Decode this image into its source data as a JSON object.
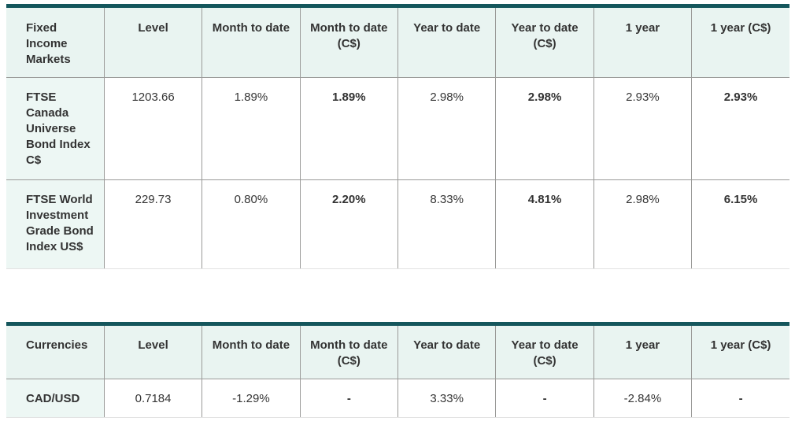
{
  "colors": {
    "accent_teal": "#14565c",
    "header_background": "#e9f4f1",
    "row_label_background": "#edf7f4",
    "grid_line": "#9a9a98",
    "table_bottom_line": "#e2e2e2",
    "text": "#363636"
  },
  "chart_data": [
    {
      "type": "table",
      "title": "Fixed Income Markets",
      "columns": [
        "Fixed Income Markets",
        "Level",
        "Month to date",
        "Month to date (C$)",
        "Year to date",
        "Year to date (C$)",
        "1 year",
        "1 year (C$)"
      ],
      "rows": [
        [
          "FTSE Canada Universe Bond Index C$",
          "1203.66",
          "1.89%",
          "1.89%",
          "2.98%",
          "2.98%",
          "2.93%",
          "2.93%"
        ],
        [
          "FTSE World Investment Grade Bond Index US$",
          "229.73",
          "0.80%",
          "2.20%",
          "8.33%",
          "4.81%",
          "2.98%",
          "6.15%"
        ]
      ]
    },
    {
      "type": "table",
      "title": "Currencies",
      "columns": [
        "Currencies",
        "Level",
        "Month to date",
        "Month to date (C$)",
        "Year to date",
        "Year to date (C$)",
        "1 year",
        "1 year (C$)"
      ],
      "rows": [
        [
          "CAD/USD",
          "0.7184",
          "-1.29%",
          "-",
          "3.33%",
          "-",
          "-2.84%",
          "-"
        ]
      ]
    }
  ]
}
